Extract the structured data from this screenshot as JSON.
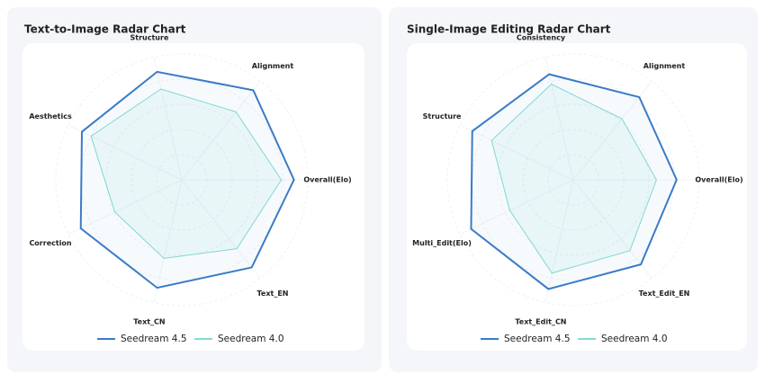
{
  "chart_data": [
    {
      "type": "radar",
      "title": "Text-to-Image Radar Chart",
      "categories": [
        "Overall(Elo)",
        "Text_EN",
        "Text_CN",
        "Correction",
        "Aesthetics",
        "Structure",
        "Alignment"
      ],
      "rlim": [
        0,
        100
      ],
      "rticks": [
        20,
        40,
        60,
        80,
        100
      ],
      "series": [
        {
          "name": "Seedream 4.5",
          "color": "#3b7bc6",
          "values": [
            89,
            89,
            88,
            89,
            88,
            88,
            91
          ]
        },
        {
          "name": "Seedream 4.0",
          "color": "#84dcd2",
          "values": [
            79,
            70,
            64,
            59,
            80,
            74,
            69
          ]
        }
      ]
    },
    {
      "type": "radar",
      "title": "Single-Image Editing Radar Chart",
      "categories": [
        "Overall(Elo)",
        "Text_Edit_EN",
        "Text_Edit_CN",
        "Multi_Edit(Elo)",
        "Structure",
        "Consistency",
        "Alignment"
      ],
      "rlim": [
        0,
        100
      ],
      "rticks": [
        20,
        40,
        60,
        80,
        100
      ],
      "series": [
        {
          "name": "Seedream 4.5",
          "color": "#3b7bc6",
          "values": [
            82,
            86,
            89,
            90,
            89,
            86,
            84
          ]
        },
        {
          "name": "Seedream 4.0",
          "color": "#84dcd2",
          "values": [
            66,
            72,
            76,
            56,
            72,
            78,
            62
          ]
        }
      ]
    }
  ]
}
